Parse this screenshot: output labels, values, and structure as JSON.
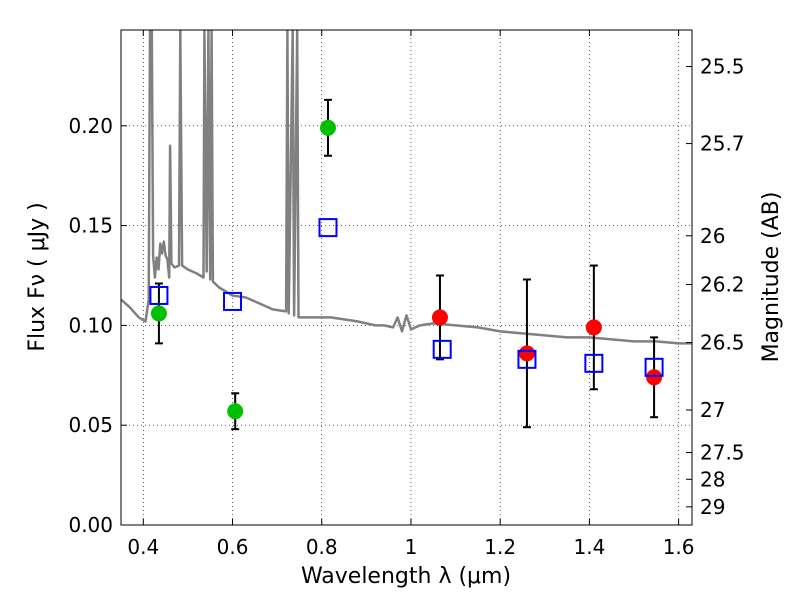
{
  "chart_data": {
    "type": "scatter",
    "title": "",
    "xlabel": "Wavelength  λ (μm)",
    "ylabel": "Flux  Fν  ( μJy )",
    "ylabel_right": "Magnitude (AB)",
    "xlim": [
      0.35,
      1.63
    ],
    "ylim": [
      0.0,
      0.248
    ],
    "grid": true,
    "x_ticks": [
      0.4,
      0.6,
      0.8,
      1.0,
      1.2,
      1.4,
      1.6
    ],
    "x_tick_labels": [
      "0.4",
      "0.6",
      "0.8",
      "1",
      "1.2",
      "1.4",
      "1.6"
    ],
    "y_ticks": [
      0.0,
      0.05,
      0.1,
      0.15,
      0.2
    ],
    "y_tick_labels": [
      "0.00",
      "0.05",
      "0.10",
      "0.15",
      "0.20"
    ],
    "right_ticks": [
      {
        "label": "25.5",
        "flux": 0.2297
      },
      {
        "label": "25.7",
        "flux": 0.1911
      },
      {
        "label": "26",
        "flux": 0.1449
      },
      {
        "label": "26.2",
        "flux": 0.1205
      },
      {
        "label": "26.5",
        "flux": 0.0914
      },
      {
        "label": "27",
        "flux": 0.0576
      },
      {
        "label": "27.5",
        "flux": 0.0363
      },
      {
        "label": "28",
        "flux": 0.0229
      },
      {
        "label": "29",
        "flux": 0.0091
      }
    ],
    "series": [
      {
        "marker": "circle",
        "color": "#00c000",
        "points": [
          {
            "x": 0.435,
            "y": 0.106,
            "err": 0.015
          },
          {
            "x": 0.606,
            "y": 0.057,
            "err": 0.009
          },
          {
            "x": 0.814,
            "y": 0.199,
            "err": 0.014
          }
        ]
      },
      {
        "marker": "circle",
        "color": "#ff0000",
        "points": [
          {
            "x": 1.065,
            "y": 0.104,
            "err": 0.021
          },
          {
            "x": 1.26,
            "y": 0.086,
            "err": 0.037
          },
          {
            "x": 1.41,
            "y": 0.099,
            "err": 0.031
          },
          {
            "x": 1.545,
            "y": 0.074,
            "err": 0.02
          }
        ]
      },
      {
        "marker": "open-square",
        "color": "#0000ff",
        "points": [
          {
            "x": 0.435,
            "y": 0.115
          },
          {
            "x": 0.6,
            "y": 0.112
          },
          {
            "x": 0.814,
            "y": 0.149
          },
          {
            "x": 1.07,
            "y": 0.088
          },
          {
            "x": 1.26,
            "y": 0.083
          },
          {
            "x": 1.41,
            "y": 0.081
          },
          {
            "x": 1.545,
            "y": 0.079
          }
        ]
      },
      {
        "marker": "line",
        "color": "#808080",
        "points": [
          [
            0.35,
            0.113
          ],
          [
            0.37,
            0.109
          ],
          [
            0.39,
            0.104
          ],
          [
            0.405,
            0.102
          ],
          [
            0.412,
            0.113
          ],
          [
            0.415,
            0.248
          ],
          [
            0.419,
            0.248
          ],
          [
            0.422,
            0.135
          ],
          [
            0.426,
            0.124
          ],
          [
            0.43,
            0.134
          ],
          [
            0.434,
            0.128
          ],
          [
            0.438,
            0.141
          ],
          [
            0.442,
            0.136
          ],
          [
            0.446,
            0.142
          ],
          [
            0.45,
            0.135
          ],
          [
            0.454,
            0.133
          ],
          [
            0.458,
            0.124
          ],
          [
            0.46,
            0.19
          ],
          [
            0.463,
            0.131
          ],
          [
            0.47,
            0.129
          ],
          [
            0.48,
            0.13
          ],
          [
            0.483,
            0.248
          ],
          [
            0.487,
            0.13
          ],
          [
            0.5,
            0.128
          ],
          [
            0.52,
            0.126
          ],
          [
            0.535,
            0.124
          ],
          [
            0.537,
            0.248
          ],
          [
            0.542,
            0.127
          ],
          [
            0.546,
            0.248
          ],
          [
            0.55,
            0.123
          ],
          [
            0.553,
            0.248
          ],
          [
            0.556,
            0.122
          ],
          [
            0.57,
            0.119
          ],
          [
            0.6,
            0.115
          ],
          [
            0.63,
            0.114
          ],
          [
            0.66,
            0.111
          ],
          [
            0.69,
            0.108
          ],
          [
            0.72,
            0.107
          ],
          [
            0.723,
            0.248
          ],
          [
            0.726,
            0.106
          ],
          [
            0.735,
            0.248
          ],
          [
            0.738,
            0.105
          ],
          [
            0.745,
            0.248
          ],
          [
            0.748,
            0.104
          ],
          [
            0.78,
            0.104
          ],
          [
            0.82,
            0.104
          ],
          [
            0.85,
            0.103
          ],
          [
            0.88,
            0.102
          ],
          [
            0.9,
            0.101
          ],
          [
            0.92,
            0.1
          ],
          [
            0.94,
            0.1
          ],
          [
            0.96,
            0.099
          ],
          [
            0.97,
            0.104
          ],
          [
            0.98,
            0.097
          ],
          [
            0.99,
            0.105
          ],
          [
            1.0,
            0.098
          ],
          [
            1.02,
            0.1
          ],
          [
            1.05,
            0.101
          ],
          [
            1.1,
            0.1
          ],
          [
            1.15,
            0.099
          ],
          [
            1.2,
            0.097
          ],
          [
            1.25,
            0.096
          ],
          [
            1.3,
            0.095
          ],
          [
            1.35,
            0.094
          ],
          [
            1.4,
            0.094
          ],
          [
            1.45,
            0.093
          ],
          [
            1.5,
            0.092
          ],
          [
            1.55,
            0.092
          ],
          [
            1.6,
            0.091
          ],
          [
            1.63,
            0.091
          ]
        ]
      }
    ]
  }
}
